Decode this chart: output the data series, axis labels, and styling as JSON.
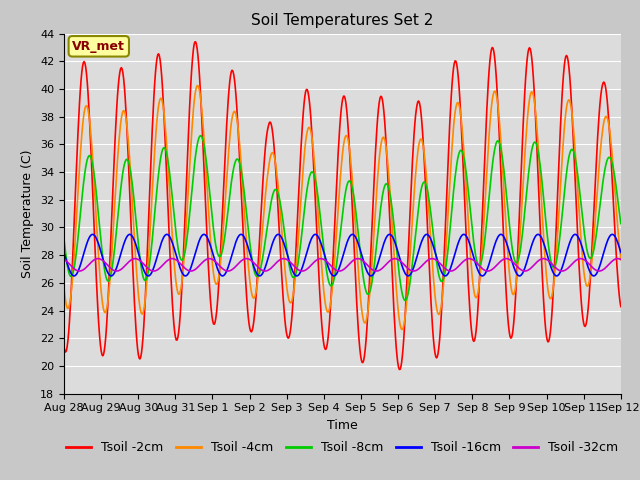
{
  "title": "Soil Temperatures Set 2",
  "xlabel": "Time",
  "ylabel": "Soil Temperature (C)",
  "ylim": [
    18,
    44
  ],
  "yticks": [
    18,
    20,
    22,
    24,
    26,
    28,
    30,
    32,
    34,
    36,
    38,
    40,
    42,
    44
  ],
  "fig_bg_color": "#c8c8c8",
  "plot_bg_color": "#dcdcdc",
  "annotation_text": "VR_met",
  "annotation_bg": "#ffffa0",
  "annotation_border": "#888800",
  "lines": {
    "Tsoil -2cm": {
      "color": "#ff0000",
      "lw": 1.2
    },
    "Tsoil -4cm": {
      "color": "#ff8800",
      "lw": 1.2
    },
    "Tsoil -8cm": {
      "color": "#00cc00",
      "lw": 1.2
    },
    "Tsoil -16cm": {
      "color": "#0000ff",
      "lw": 1.2
    },
    "Tsoil -32cm": {
      "color": "#cc00cc",
      "lw": 1.2
    }
  },
  "xtick_labels": [
    "Aug 28",
    "Aug 29",
    "Aug 30",
    "Aug 31",
    "Sep 1",
    "Sep 2",
    "Sep 3",
    "Sep 4",
    "Sep 5",
    "Sep 6",
    "Sep 7",
    "Sep 8",
    "Sep 9",
    "Sep 10",
    "Sep 11",
    "Sep 12"
  ],
  "grid_color": "#ffffff",
  "tick_fontsize": 8,
  "legend_fontsize": 9,
  "num_days": 15
}
